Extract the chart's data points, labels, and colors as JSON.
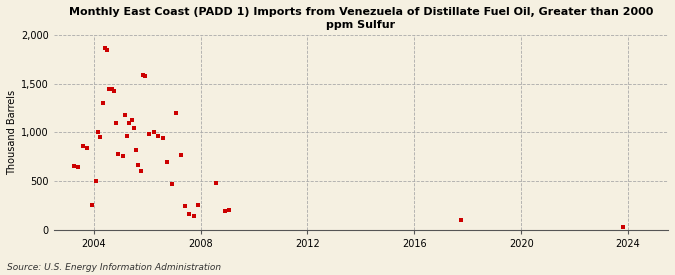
{
  "title": "Monthly East Coast (PADD 1) Imports from Venezuela of Distillate Fuel Oil, Greater than 2000\nppm Sulfur",
  "ylabel": "Thousand Barrels",
  "source": "Source: U.S. Energy Information Administration",
  "background_color": "#f5f0e1",
  "plot_background_color": "#f5f0e1",
  "marker_color": "#cc0000",
  "xlim": [
    2002.5,
    2025.5
  ],
  "ylim": [
    0,
    2000
  ],
  "yticks": [
    0,
    500,
    1000,
    1500,
    2000
  ],
  "xticks": [
    2004,
    2008,
    2012,
    2016,
    2020,
    2024
  ],
  "data_x": [
    2003.25,
    2003.42,
    2003.58,
    2003.75,
    2003.92,
    2004.08,
    2004.17,
    2004.25,
    2004.33,
    2004.42,
    2004.5,
    2004.58,
    2004.67,
    2004.75,
    2004.83,
    2004.92,
    2005.08,
    2005.17,
    2005.25,
    2005.33,
    2005.42,
    2005.5,
    2005.58,
    2005.67,
    2005.75,
    2005.83,
    2005.92,
    2006.08,
    2006.25,
    2006.42,
    2006.58,
    2006.75,
    2006.92,
    2007.08,
    2007.25,
    2007.42,
    2007.58,
    2007.75,
    2007.92,
    2008.58,
    2008.92,
    2009.08,
    2017.75,
    2023.83
  ],
  "data_y": [
    660,
    650,
    860,
    840,
    250,
    500,
    1000,
    950,
    1300,
    1870,
    1850,
    1450,
    1450,
    1430,
    1100,
    780,
    760,
    1180,
    960,
    1100,
    1130,
    1050,
    820,
    670,
    600,
    1590,
    1580,
    980,
    1000,
    960,
    940,
    700,
    470,
    1200,
    770,
    240,
    165,
    145,
    250,
    480,
    190,
    200,
    100,
    25
  ],
  "title_fontsize": 8,
  "axis_fontsize": 7,
  "source_fontsize": 6.5
}
